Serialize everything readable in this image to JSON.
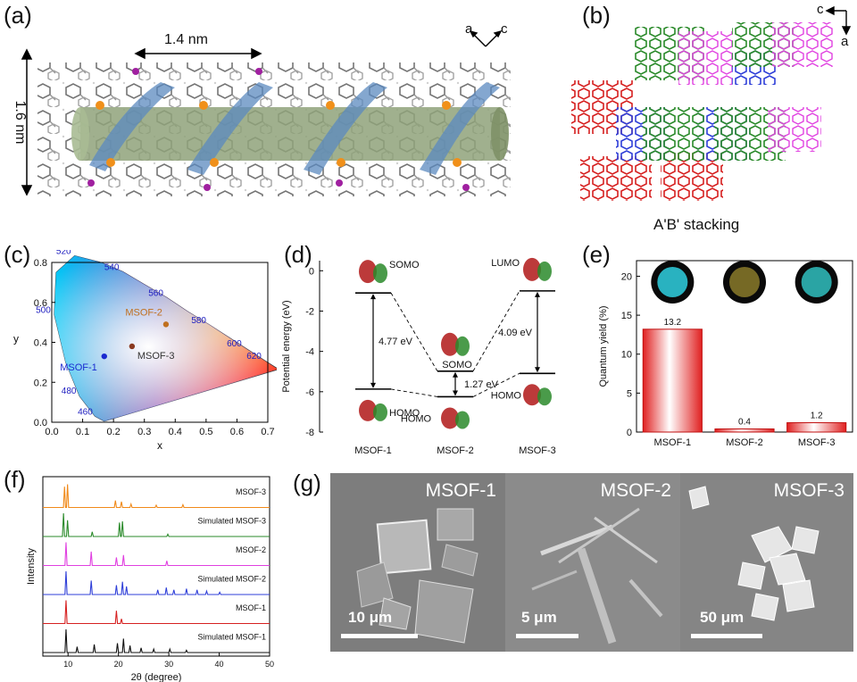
{
  "panel_labels": {
    "a": "(a)",
    "b": "(b)",
    "c": "(c)",
    "d": "(d)",
    "e": "(e)",
    "f": "(f)",
    "g": "(g)"
  },
  "panel_a": {
    "width_label": "1.4 nm",
    "height_label": "1.6 nm",
    "axis_a": "a",
    "axis_c": "c"
  },
  "panel_b": {
    "caption": "A'B' stacking",
    "axis_c": "c",
    "axis_a": "a"
  },
  "colors": {
    "red": "#d62020",
    "green": "#2a8a2a",
    "blue": "#2f3fd8",
    "magenta": "#e040e0",
    "orange": "#f08a1a",
    "black": "#111111",
    "bar_red": "#e02020"
  },
  "chart_data": [
    {
      "id": "c",
      "type": "scatter",
      "title": "",
      "xlabel": "x",
      "ylabel": "y",
      "xlim": [
        0.0,
        0.7
      ],
      "ylim": [
        0.0,
        0.8
      ],
      "xticks": [
        "0.0",
        "0.1",
        "0.2",
        "0.3",
        "0.4",
        "0.5",
        "0.6",
        "0.7"
      ],
      "yticks": [
        "0.0",
        "0.2",
        "0.4",
        "0.6",
        "0.8"
      ],
      "wavelength_labels": [
        {
          "label": "460",
          "x": 0.144,
          "y": 0.03
        },
        {
          "label": "480",
          "x": 0.091,
          "y": 0.133
        },
        {
          "label": "500",
          "x": 0.008,
          "y": 0.538
        },
        {
          "label": "520",
          "x": 0.074,
          "y": 0.834
        },
        {
          "label": "540",
          "x": 0.23,
          "y": 0.754
        },
        {
          "label": "560",
          "x": 0.373,
          "y": 0.624
        },
        {
          "label": "580",
          "x": 0.512,
          "y": 0.487
        },
        {
          "label": "600",
          "x": 0.627,
          "y": 0.372
        },
        {
          "label": "620",
          "x": 0.691,
          "y": 0.308
        }
      ],
      "points": [
        {
          "name": "MSOF-1",
          "x": 0.17,
          "y": 0.33
        },
        {
          "name": "MSOF-2",
          "x": 0.37,
          "y": 0.49
        },
        {
          "name": "MSOF-3",
          "x": 0.26,
          "y": 0.38
        }
      ]
    },
    {
      "id": "d",
      "type": "energy-level diagram",
      "ylabel": "Potential energy (eV)",
      "ylim": [
        -8,
        0.5
      ],
      "yticks": [
        "0",
        "-2",
        "-4",
        "-6",
        "-8"
      ],
      "categories": [
        "MSOF-1",
        "MSOF-2",
        "MSOF-3"
      ],
      "levels": [
        {
          "compound": "MSOF-1",
          "upper": -1.1,
          "lower": -5.87,
          "upper_label": "SOMO",
          "lower_label": "HOMO",
          "gap": "4.77 eV"
        },
        {
          "compound": "MSOF-2",
          "upper": -4.98,
          "lower": -6.25,
          "upper_label": "SOMO",
          "lower_label": "HOMO",
          "gap": "1.27 eV"
        },
        {
          "compound": "MSOF-3",
          "upper": -1.0,
          "lower": -5.09,
          "upper_label": "LUMO",
          "lower_label": "HOMO",
          "gap": "4.09 eV"
        }
      ]
    },
    {
      "id": "e",
      "type": "bar",
      "ylabel": "Quantum yield (%)",
      "ylim": [
        0,
        22
      ],
      "yticks": [
        "0",
        "5",
        "10",
        "15",
        "20"
      ],
      "categories": [
        "MSOF-1",
        "MSOF-2",
        "MSOF-3"
      ],
      "values": [
        13.2,
        0.4,
        1.2
      ],
      "value_labels": [
        "13.2",
        "0.4",
        "1.2"
      ],
      "photo_colors": [
        "#2fd0e0",
        "#8a7a2a",
        "#30c0c0"
      ]
    },
    {
      "id": "f",
      "type": "line",
      "xlabel": "2θ (degree)",
      "ylabel": "Intensity",
      "xlim": [
        5,
        50
      ],
      "xticks": [
        "10",
        "20",
        "30",
        "40",
        "50"
      ],
      "series": [
        {
          "name": "Simulated MSOF-1",
          "color": "#111111",
          "peaks": [
            [
              9.6,
              1.0
            ],
            [
              11.8,
              0.25
            ],
            [
              15.2,
              0.35
            ],
            [
              19.8,
              0.4
            ],
            [
              21.0,
              0.6
            ],
            [
              22.3,
              0.3
            ],
            [
              24.5,
              0.2
            ],
            [
              27.0,
              0.15
            ],
            [
              30.2,
              0.15
            ],
            [
              33.5,
              0.1
            ]
          ]
        },
        {
          "name": "MSOF-1",
          "color": "#d62020",
          "peaks": [
            [
              9.6,
              1.0
            ],
            [
              19.6,
              0.55
            ],
            [
              20.6,
              0.2
            ]
          ]
        },
        {
          "name": "Simulated MSOF-2",
          "color": "#2f3fd8",
          "peaks": [
            [
              9.6,
              1.0
            ],
            [
              14.6,
              0.6
            ],
            [
              19.6,
              0.4
            ],
            [
              20.8,
              0.55
            ],
            [
              21.6,
              0.35
            ],
            [
              27.8,
              0.2
            ],
            [
              29.5,
              0.3
            ],
            [
              31.0,
              0.2
            ],
            [
              33.5,
              0.25
            ],
            [
              35.6,
              0.2
            ],
            [
              37.5,
              0.15
            ],
            [
              40.1,
              0.1
            ]
          ]
        },
        {
          "name": "MSOF-2",
          "color": "#e040e0",
          "peaks": [
            [
              9.6,
              1.0
            ],
            [
              14.6,
              0.6
            ],
            [
              19.6,
              0.35
            ],
            [
              21.0,
              0.45
            ],
            [
              29.6,
              0.2
            ]
          ]
        },
        {
          "name": "Simulated MSOF-3",
          "color": "#2a8a2a",
          "peaks": [
            [
              9.1,
              1.0
            ],
            [
              9.9,
              0.7
            ],
            [
              14.8,
              0.2
            ],
            [
              20.2,
              0.6
            ],
            [
              20.8,
              0.65
            ],
            [
              29.8,
              0.1
            ]
          ]
        },
        {
          "name": "MSOF-3",
          "color": "#f08a1a",
          "peaks": [
            [
              9.3,
              0.9
            ],
            [
              9.9,
              1.0
            ],
            [
              19.4,
              0.3
            ],
            [
              20.6,
              0.25
            ],
            [
              22.5,
              0.15
            ],
            [
              27.5,
              0.1
            ],
            [
              32.8,
              0.12
            ]
          ]
        }
      ]
    }
  ],
  "panel_g": {
    "images": [
      {
        "title": "MSOF-1",
        "scale": "10 μm"
      },
      {
        "title": "MSOF-2",
        "scale": "5 μm"
      },
      {
        "title": "MSOF-3",
        "scale": "50 μm"
      }
    ]
  }
}
